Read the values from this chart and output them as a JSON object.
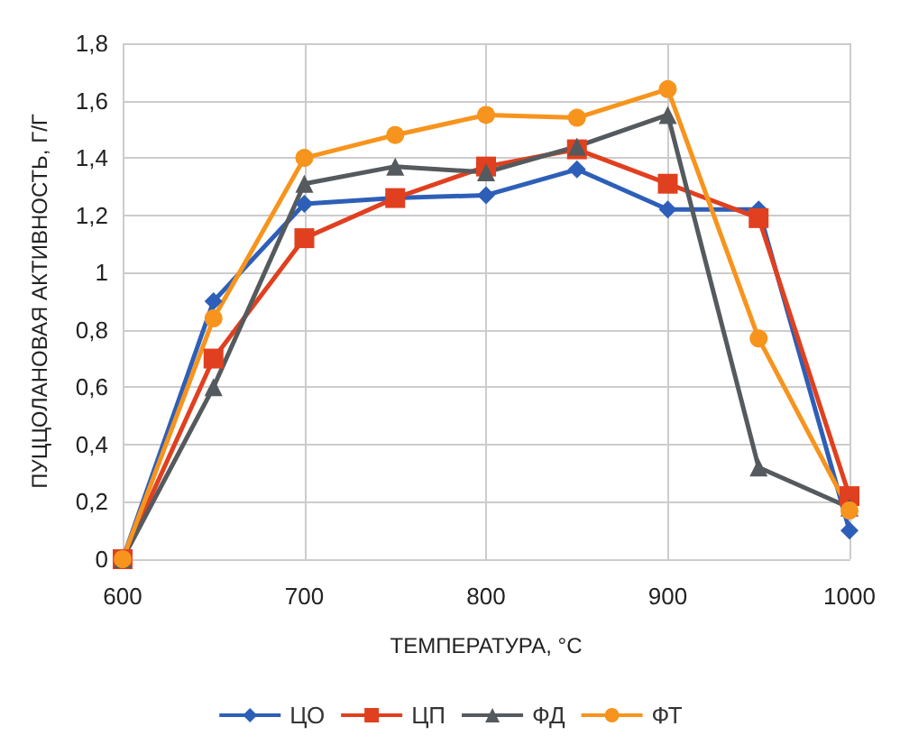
{
  "chart_data": {
    "type": "line",
    "xlabel": "ТЕМПЕРАТУРА, °C",
    "ylabel": "ПУЦЦОЛАНОВАЯ АКТИВНОСТЬ, Г/Г",
    "x": [
      600,
      650,
      700,
      750,
      800,
      850,
      900,
      950,
      1000
    ],
    "series": [
      {
        "name": "ЦО",
        "color": "#2e5fb8",
        "marker": "diamond",
        "values": [
          0,
          0.9,
          1.24,
          1.26,
          1.27,
          1.36,
          1.22,
          1.22,
          0.1
        ]
      },
      {
        "name": "ЦП",
        "color": "#e0401f",
        "marker": "square",
        "values": [
          0,
          0.7,
          1.12,
          1.26,
          1.37,
          1.43,
          1.31,
          1.19,
          0.22
        ]
      },
      {
        "name": "ФД",
        "color": "#555a5e",
        "marker": "triangle",
        "values": [
          0,
          0.6,
          1.31,
          1.37,
          1.35,
          1.44,
          1.55,
          0.32,
          0.18
        ]
      },
      {
        "name": "ФТ",
        "color": "#f7941d",
        "marker": "circle",
        "values": [
          0,
          0.84,
          1.4,
          1.48,
          1.55,
          1.54,
          1.64,
          0.77,
          0.17
        ]
      }
    ],
    "xlim": [
      600,
      1000
    ],
    "xticks": [
      600,
      700,
      800,
      900,
      1000
    ],
    "ylim": [
      0,
      1.8
    ],
    "yticks": [
      0,
      {
        "value": 0.2,
        "label": "0,2"
      },
      {
        "value": 0.4,
        "label": "0,4"
      },
      {
        "value": 0.6,
        "label": "0,6"
      },
      {
        "value": 0.8,
        "label": "0,8"
      },
      1,
      {
        "value": 1.2,
        "label": "1,2"
      },
      {
        "value": 1.4,
        "label": "1,4"
      },
      {
        "value": 1.6,
        "label": "1,6"
      },
      {
        "value": 1.8,
        "label": "1,8"
      }
    ],
    "grid": true,
    "legend": "bottom",
    "line_style": "solid"
  }
}
